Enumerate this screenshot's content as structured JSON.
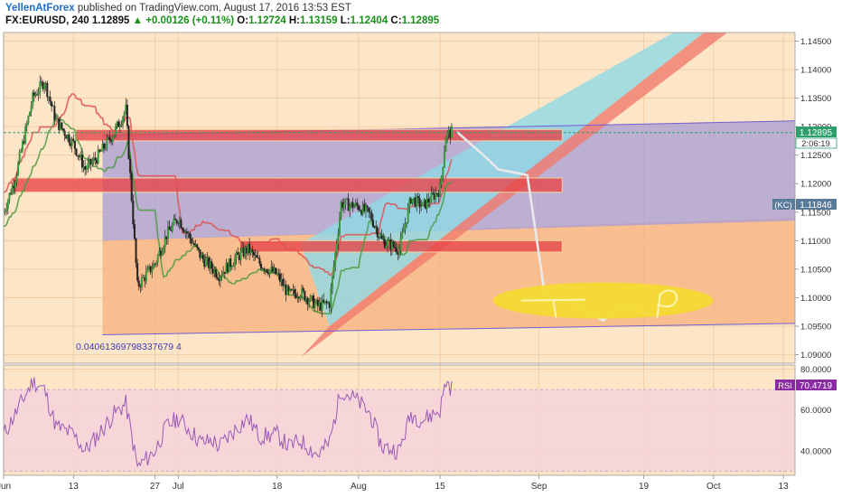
{
  "header": {
    "author": "YellenAtForex",
    "published": "published on TradingView.com, August 17, 2016 13:53 EST",
    "symbol": "FX:EURUSD, 240",
    "last": "1.12895",
    "change": "+0.00126 (+0.11%)",
    "o_label": "O:",
    "o_value": "1.12724",
    "h_label": "H:",
    "h_value": "1.13159",
    "l_label": "L:",
    "l_value": "1.12404",
    "c_label": "C:",
    "c_value": "1.12895"
  },
  "colors": {
    "background": "#fde5c8",
    "grid": "#f2c99c",
    "orange_zone": "#f7b07e",
    "purple_channel": "#a79cd6",
    "blue_band": "#8fd9e6",
    "red_band": "#f07c6e",
    "resistance_box": "#e8474a",
    "ellipse": "#f4dc2c",
    "rsi_line": "#9b59b6",
    "rsi_band": "#f6d3dc",
    "last_price": "#2e9e6a",
    "kc_tag": "#5a7a99",
    "rsi_tag": "#8a2ba3",
    "tenkan": "#e05050",
    "kijun": "#4a9a3e"
  },
  "annotations": {
    "range_value": "0.04061369798337679 4"
  },
  "tags": {
    "last_price": "1.12895",
    "countdown": "2:06:19",
    "kc_label": "(KC)",
    "kc_value": "1.11846",
    "rsi_label": "RSI",
    "rsi_value": "70.4719"
  },
  "chart_data": [
    {
      "type": "candlestick",
      "symbol": "FX:EURUSD",
      "timeframe": "240",
      "x_ticks": [
        "Jun",
        "13",
        "27",
        "Jul",
        "18",
        "Aug",
        "15",
        "Sep",
        "19",
        "Oct",
        "13"
      ],
      "y_ticks": [
        "1.14500",
        "1.14000",
        "1.13500",
        "1.13000",
        "1.12500",
        "1.12000",
        "1.11500",
        "1.11000",
        "1.10500",
        "1.10000",
        "1.09500",
        "1.09000"
      ],
      "ylim": [
        1.0885,
        1.1465
      ],
      "close_path": [
        [
          "Jun 01",
          1.115
        ],
        [
          "Jun 03",
          1.121
        ],
        [
          "Jun 06",
          1.135
        ],
        [
          "Jun 08",
          1.138
        ],
        [
          "Jun 10",
          1.131
        ],
        [
          "Jun 13",
          1.127
        ],
        [
          "Jun 15",
          1.1225
        ],
        [
          "Jun 17",
          1.1245
        ],
        [
          "Jun 20",
          1.129
        ],
        [
          "Jun 22",
          1.133
        ],
        [
          "Jun 24",
          1.102
        ],
        [
          "Jun 27",
          1.106
        ],
        [
          "Jun 29",
          1.111
        ],
        [
          "Jul 01",
          1.114
        ],
        [
          "Jul 05",
          1.107
        ],
        [
          "Jul 07",
          1.105
        ],
        [
          "Jul 08",
          1.104
        ],
        [
          "Jul 11",
          1.107
        ],
        [
          "Jul 13",
          1.1085
        ],
        [
          "Jul 15",
          1.106
        ],
        [
          "Jul 18",
          1.104
        ],
        [
          "Jul 20",
          1.1005
        ],
        [
          "Jul 22",
          1.101
        ],
        [
          "Jul 25",
          1.0985
        ],
        [
          "Jul 27",
          1.099
        ],
        [
          "Jul 29",
          1.1165
        ],
        [
          "Aug 01",
          1.116
        ],
        [
          "Aug 03",
          1.1145
        ],
        [
          "Aug 05",
          1.11
        ],
        [
          "Aug 08",
          1.1085
        ],
        [
          "Aug 10",
          1.1175
        ],
        [
          "Aug 12",
          1.116
        ],
        [
          "Aug 15",
          1.119
        ],
        [
          "Aug 16",
          1.1285
        ],
        [
          "Aug 17",
          1.129
        ]
      ],
      "forecast_path": [
        [
          "Aug 18",
          1.129
        ],
        [
          "Aug 23",
          1.1245
        ],
        [
          "Aug 25",
          1.1225
        ],
        [
          "Aug 30",
          1.1215
        ],
        [
          "Sep 02",
          1.1005
        ],
        [
          "Sep 07",
          1.099
        ],
        [
          "Sep 12",
          1.096
        ],
        [
          "Sep 16",
          1.099
        ],
        [
          "Sep 20",
          1.097
        ]
      ],
      "resistance_zones": [
        {
          "from": 1.1275,
          "to": 1.1295
        },
        {
          "from": 1.1185,
          "to": 1.121
        },
        {
          "from": 1.108,
          "to": 1.11
        }
      ],
      "grid": true
    },
    {
      "type": "line",
      "name": "RSI",
      "y_ticks": [
        "80.0000",
        "60.0000",
        "40.0000"
      ],
      "ylim": [
        28,
        82
      ],
      "band": [
        30,
        70
      ],
      "values": [
        [
          "Jun 01",
          48
        ],
        [
          "Jun 03",
          58
        ],
        [
          "Jun 06",
          74
        ],
        [
          "Jun 08",
          70
        ],
        [
          "Jun 10",
          52
        ],
        [
          "Jun 13",
          48
        ],
        [
          "Jun 15",
          40
        ],
        [
          "Jun 17",
          47
        ],
        [
          "Jun 20",
          58
        ],
        [
          "Jun 22",
          63
        ],
        [
          "Jun 24",
          32
        ],
        [
          "Jun 27",
          40
        ],
        [
          "Jun 29",
          52
        ],
        [
          "Jul 01",
          56
        ],
        [
          "Jul 05",
          44
        ],
        [
          "Jul 07",
          45
        ],
        [
          "Jul 08",
          42
        ],
        [
          "Jul 11",
          51
        ],
        [
          "Jul 13",
          56
        ],
        [
          "Jul 15",
          47
        ],
        [
          "Jul 18",
          48
        ],
        [
          "Jul 20",
          42
        ],
        [
          "Jul 22",
          45
        ],
        [
          "Jul 25",
          38
        ],
        [
          "Jul 27",
          44
        ],
        [
          "Jul 29",
          70
        ],
        [
          "Aug 01",
          64
        ],
        [
          "Aug 03",
          58
        ],
        [
          "Aug 05",
          42
        ],
        [
          "Aug 08",
          40
        ],
        [
          "Aug 10",
          58
        ],
        [
          "Aug 12",
          55
        ],
        [
          "Aug 15",
          60
        ],
        [
          "Aug 16",
          74
        ],
        [
          "Aug 17",
          70.47
        ]
      ]
    }
  ]
}
